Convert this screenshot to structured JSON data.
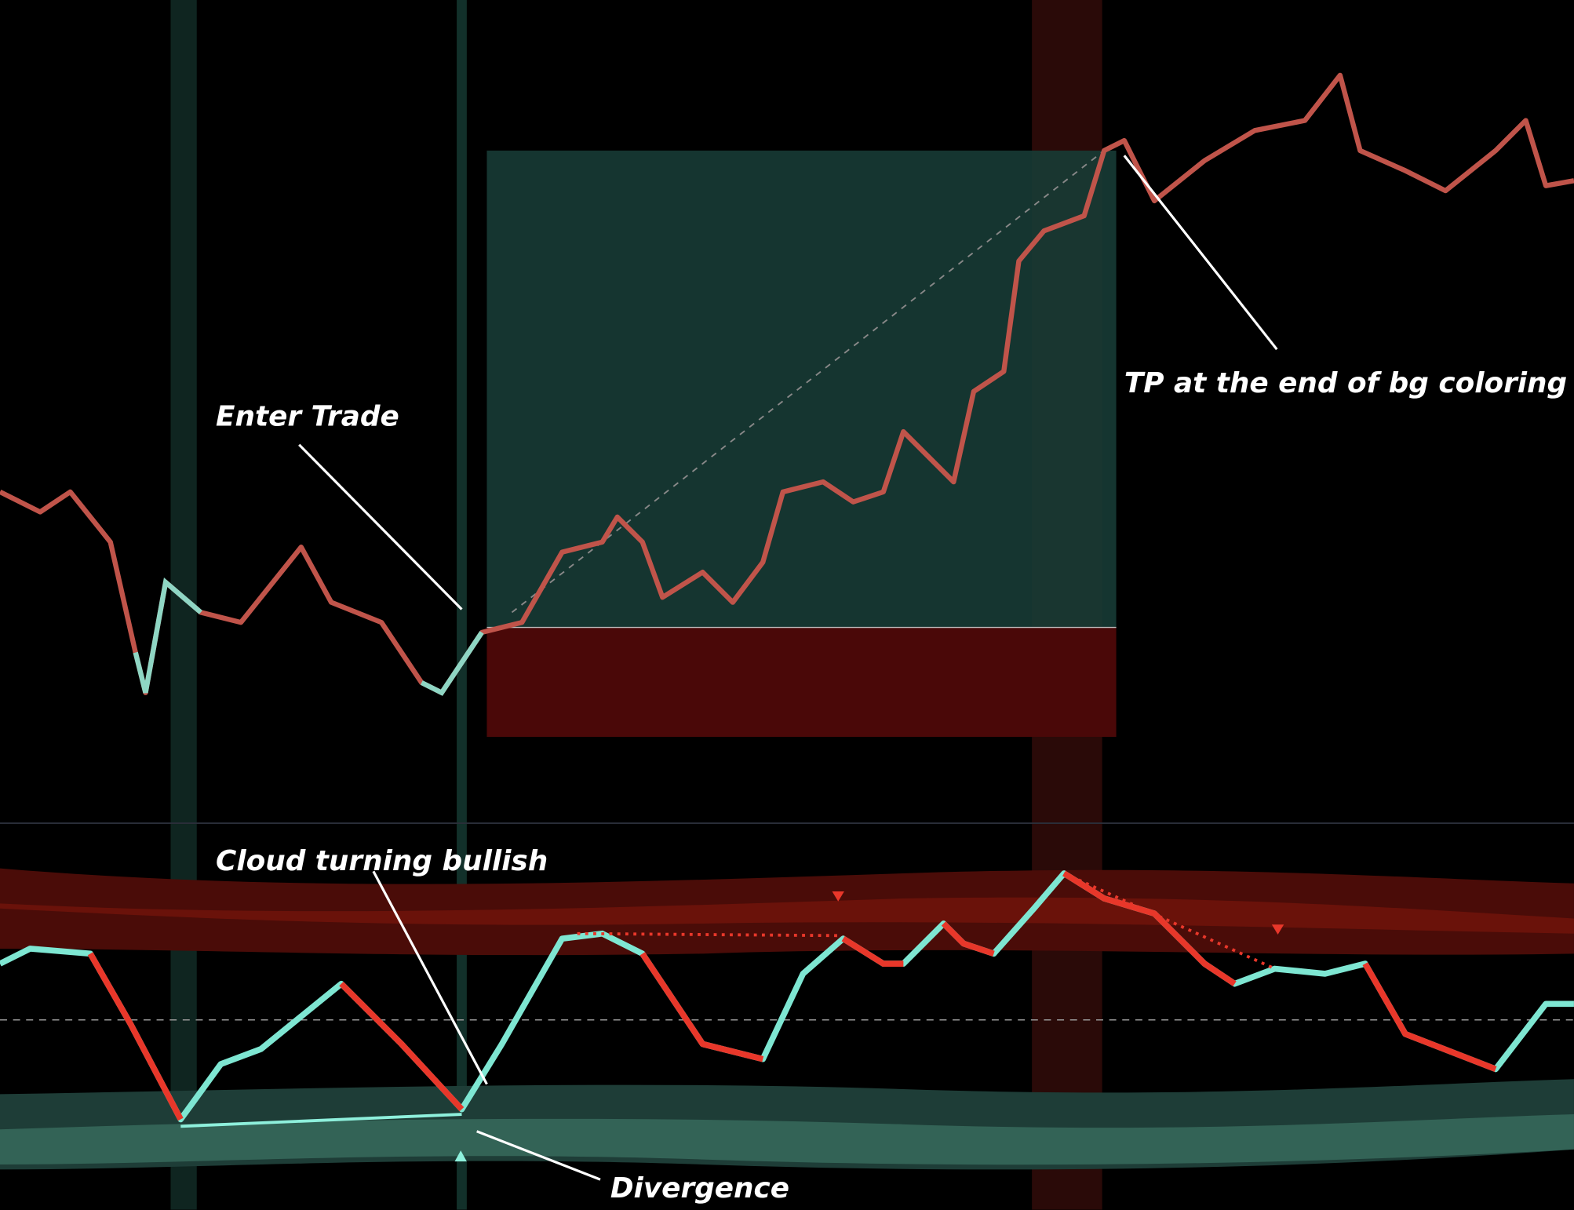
{
  "annotations": [
    {
      "text": "Enter Trade"
    },
    {
      "text": "TP at the end of bg coloring"
    },
    {
      "text": "Cloud turning bullish"
    },
    {
      "text": "Divergence"
    }
  ]
}
